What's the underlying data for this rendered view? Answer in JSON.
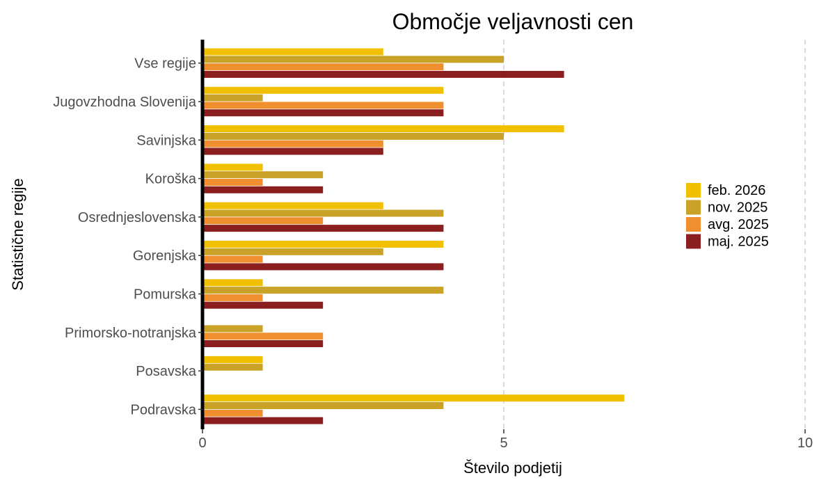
{
  "chart_data": {
    "type": "bar",
    "orientation": "horizontal",
    "title": "Območje veljavnosti cen",
    "xlabel": "Število podjetij",
    "ylabel": "Statistične regije",
    "xlim": [
      0,
      10
    ],
    "x_ticks": [
      0,
      5,
      10
    ],
    "grid": "vertical dashed at major ticks",
    "legend_position": "right",
    "categories": [
      "Vse regije",
      "Jugovzhodna Slovenija",
      "Savinjska",
      "Koroška",
      "Osrednjeslovenska",
      "Gorenjska",
      "Pomurska",
      "Primorsko-notranjska",
      "Posavska",
      "Podravska"
    ],
    "series": [
      {
        "name": "feb. 2026",
        "color": "#F1C000",
        "values": [
          3,
          4,
          6,
          1,
          3,
          4,
          1,
          0,
          1,
          7
        ]
      },
      {
        "name": "nov. 2025",
        "color": "#C9A227",
        "values": [
          5,
          1,
          5,
          2,
          4,
          3,
          4,
          1,
          1,
          4
        ]
      },
      {
        "name": "avg. 2025",
        "color": "#EF8F30",
        "values": [
          4,
          4,
          3,
          1,
          2,
          1,
          1,
          2,
          0,
          1
        ]
      },
      {
        "name": "maj. 2025",
        "color": "#8B1E1E",
        "values": [
          6,
          4,
          3,
          2,
          4,
          4,
          2,
          2,
          0,
          2
        ]
      }
    ]
  }
}
